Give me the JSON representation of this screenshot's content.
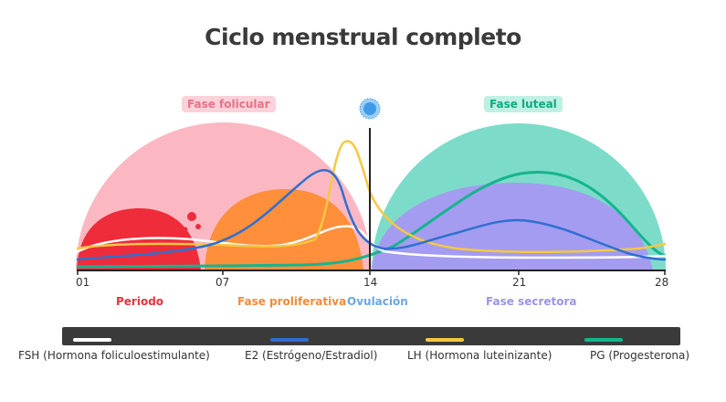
{
  "title": "Ciclo menstrual completo",
  "phases": {
    "follicular": "Fase folicular",
    "luteal": "Fase luteal"
  },
  "ticks": [
    "01",
    "07",
    "14",
    "21",
    "28"
  ],
  "stages": [
    {
      "label": "Periodo",
      "color": "#e8323e"
    },
    {
      "label": "Fase proliferativa",
      "color": "#f58a36"
    },
    {
      "label": "Ovulación",
      "color": "#6aa7e0"
    },
    {
      "label": "Fase secretora",
      "color": "#9a94e8"
    }
  ],
  "legend": [
    {
      "label": "FSH (Hormona foliculoestimulante)",
      "color": "#ffffff"
    },
    {
      "label": "E2 (Estrógeno/Estradiol)",
      "color": "#2f6fd0"
    },
    {
      "label": "LH (Hormona luteinizante)",
      "color": "#f5c842"
    },
    {
      "label": "PG (Progesterona)",
      "color": "#14b58e"
    }
  ],
  "colors": {
    "follicular_area": "#fcb8c2",
    "period_area": "#ef2c3a",
    "proliferative_area": "#ff8f3a",
    "luteal_area": "#7cdcc9",
    "secretory_area": "#a49cf0",
    "ovulation_line": "#222222",
    "ovum": "#3f9be8"
  },
  "icons": [
    "ovum-icon",
    "blood-drops-icon"
  ]
}
